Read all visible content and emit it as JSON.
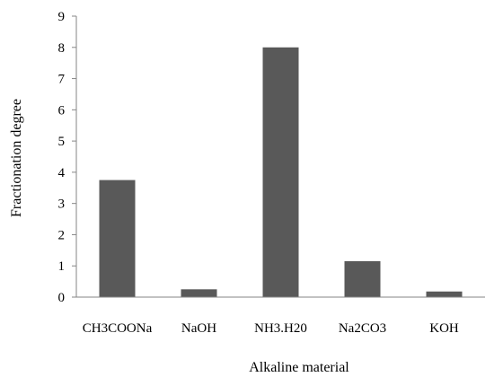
{
  "chart_data": {
    "type": "bar",
    "categories": [
      "CH3COONa",
      "NaOH",
      "NH3.H20",
      "Na2CO3",
      "KOH"
    ],
    "values": [
      3.75,
      0.25,
      8.0,
      1.15,
      0.18
    ],
    "title": "",
    "xlabel": "Alkaline material",
    "ylabel": "Fractionation degree",
    "ylim": [
      0,
      9
    ],
    "yticks": [
      0,
      1,
      2,
      3,
      4,
      5,
      6,
      7,
      8,
      9
    ],
    "grid": false,
    "legend": "none",
    "bar_color": "#595959",
    "axis_color": "#868686"
  }
}
